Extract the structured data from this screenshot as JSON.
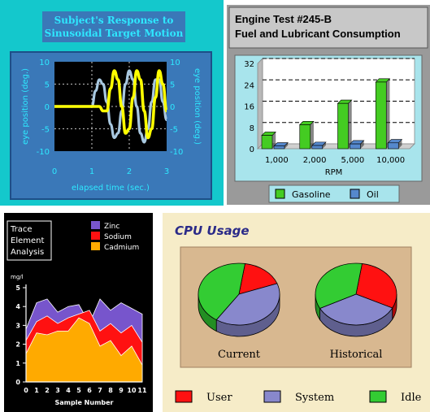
{
  "chart_data": [
    {
      "id": "eye",
      "type": "line",
      "title": [
        "Subject's Response to",
        "Sinusoidal Target Motion"
      ],
      "xlabel": "elapsed time (sec.)",
      "ylabel_left": "eye position (deg.)",
      "ylabel_right": "eye position (deg.)",
      "xlim": [
        0,
        3
      ],
      "ylim": [
        -10,
        10
      ],
      "xticks": [
        "0",
        "1",
        "2",
        "3"
      ],
      "yticks": [
        "10",
        "5",
        "0",
        "-5",
        "-10"
      ],
      "grid": true,
      "colors": {
        "bg": "#14c8cc",
        "frame": "#3a78b8",
        "plot": "#000000",
        "target": "#a8c8e0",
        "response": "#ffff00",
        "text": "#2ee8ff"
      },
      "series": [
        {
          "role": "target",
          "x": [
            0,
            0.5,
            1,
            1.1,
            1.2,
            1.3,
            1.4,
            1.5,
            1.6,
            1.7,
            1.8,
            1.9,
            2,
            2.1,
            2.2,
            2.3,
            2.4,
            2.5,
            2.6,
            2.7,
            2.8,
            2.9,
            3
          ],
          "y": [
            0,
            0,
            0,
            3.5,
            6,
            5,
            1,
            -4,
            -7,
            -6,
            -1,
            5,
            8,
            6,
            0,
            -6,
            -8,
            -5,
            1,
            6,
            6,
            1,
            -3
          ]
        },
        {
          "role": "response",
          "x": [
            0,
            0.5,
            1.2,
            1.3,
            1.4,
            1.5,
            1.6,
            1.7,
            1.8,
            1.9,
            2,
            2.1,
            2.2,
            2.3,
            2.4,
            2.5,
            2.6,
            2.7,
            2.8,
            2.9,
            3
          ],
          "y": [
            0,
            0,
            0,
            -1,
            -1,
            4,
            8,
            6,
            0,
            -6,
            -5,
            2,
            8,
            6,
            -1,
            -7,
            -5,
            2,
            8,
            5,
            -1
          ]
        }
      ]
    },
    {
      "id": "engine",
      "type": "bar",
      "title": [
        "Engine Test  #245-B",
        "Fuel and Lubricant Consumption"
      ],
      "xlabel": "RPM",
      "categories": [
        "1,000",
        "2,000",
        "5,000",
        "10,000"
      ],
      "ylim": [
        0,
        32
      ],
      "yticks": [
        "0",
        "8",
        "16",
        "24",
        "32"
      ],
      "series": [
        {
          "name": "Gasoline",
          "values": [
            5,
            9,
            17,
            25
          ],
          "color": "#44cc22"
        },
        {
          "name": "Oil",
          "values": [
            1,
            1.2,
            1.8,
            2.2
          ],
          "color": "#5588cc"
        }
      ],
      "legend": "bottom",
      "colors": {
        "bg": "#9a9a9a",
        "plot": "#a8e4ec"
      }
    },
    {
      "id": "trace",
      "type": "area",
      "title": [
        "Trace",
        "Element",
        "Analysis"
      ],
      "xlabel": "Sample Number",
      "ylabel": "mg/l",
      "x": [
        0,
        1,
        2,
        3,
        4,
        5,
        6,
        7,
        8,
        9,
        10,
        11
      ],
      "xticks": [
        "0",
        "1",
        "2",
        "3",
        "4",
        "5",
        "6",
        "7",
        "8",
        "9",
        "10",
        "11"
      ],
      "yticks": [
        "0",
        "1",
        "2",
        "3",
        "4",
        "5"
      ],
      "ylim": [
        0,
        5
      ],
      "series": [
        {
          "name": "Zinc",
          "values": [
            2.8,
            4.2,
            4.4,
            3.7,
            4.0,
            4.1,
            3.1,
            4.4,
            3.8,
            4.2,
            3.9,
            3.6
          ],
          "color": "#7755cc"
        },
        {
          "name": "Sodium",
          "values": [
            2.2,
            3.2,
            3.5,
            3.1,
            3.4,
            3.6,
            3.8,
            2.7,
            3.1,
            2.6,
            3.0,
            2.1
          ],
          "color": "#ff1111"
        },
        {
          "name": "Cadmium",
          "values": [
            1.5,
            2.6,
            2.5,
            2.7,
            2.7,
            3.4,
            3.1,
            1.9,
            2.2,
            1.4,
            1.9,
            0.9
          ],
          "color": "#ffaa00"
        }
      ],
      "legend": "top-right"
    },
    {
      "id": "cpu",
      "type": "pie",
      "title": "CPU Usage",
      "pies": [
        {
          "label": "Current",
          "values": [
            17,
            40,
            43
          ]
        },
        {
          "label": "Historical",
          "values": [
            30,
            35,
            35
          ]
        }
      ],
      "series": [
        {
          "name": "User",
          "color": "#ff1111"
        },
        {
          "name": "System",
          "color": "#8888cc"
        },
        {
          "name": "Idle",
          "color": "#33cc33"
        }
      ],
      "legend": "bottom",
      "colors": {
        "bg": "#f6ecc8",
        "frame": "#d8b890",
        "title": "#2a2a88"
      }
    }
  ]
}
